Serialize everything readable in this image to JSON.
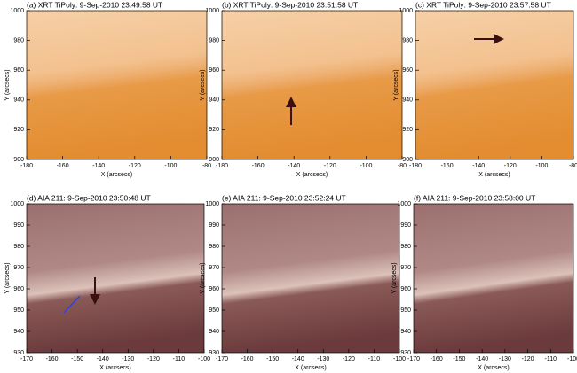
{
  "panels": [
    {
      "title": "(a) XRT TiPoly:  9-Sep-2010 23:49:58 UT",
      "xlabel": "X (arcsecs)",
      "ylabel": "Y (arcsecs)",
      "kind": "xrt",
      "xlim": [
        -180,
        -80
      ],
      "xticks": [
        -180,
        -160,
        -140,
        -120,
        -100,
        -80
      ],
      "ylim": [
        900,
        1000
      ],
      "yticks": [
        900,
        920,
        940,
        960,
        980,
        1000
      ]
    },
    {
      "title": "(b) XRT TiPoly:  9-Sep-2010 23:51:58 UT",
      "xlabel": "X (arcsecs)",
      "ylabel": "Y (arcsecs)",
      "kind": "xrt",
      "xlim": [
        -180,
        -80
      ],
      "xticks": [
        -180,
        -160,
        -140,
        -120,
        -100,
        -80
      ],
      "ylim": [
        900,
        1000
      ],
      "yticks": [
        900,
        920,
        940,
        960,
        980,
        1000
      ]
    },
    {
      "title": "(c) XRT TiPoly:  9-Sep-2010 23:57:58 UT",
      "xlabel": "X (arcsecs)",
      "ylabel": "Y (arcsecs)",
      "kind": "xrt",
      "xlim": [
        -180,
        -80
      ],
      "xticks": [
        -180,
        -160,
        -140,
        -120,
        -100,
        -80
      ],
      "ylim": [
        900,
        1000
      ],
      "yticks": [
        900,
        920,
        940,
        960,
        980,
        1000
      ]
    },
    {
      "title": "(d) AIA 211: 9-Sep-2010 23:50:48 UT",
      "xlabel": "X (arcsecs)",
      "ylabel": "Y (arcsecs)",
      "kind": "aia",
      "xlim": [
        -170,
        -100
      ],
      "xticks": [
        -170,
        -160,
        -150,
        -140,
        -130,
        -120,
        -110,
        -100
      ],
      "ylim": [
        930,
        1000
      ],
      "yticks": [
        930,
        940,
        950,
        960,
        970,
        980,
        990,
        1000
      ]
    },
    {
      "title": "(e) AIA 211:  9-Sep-2010 23:52:24 UT",
      "xlabel": "X (arcsecs)",
      "ylabel": "Y (arcsecs)",
      "kind": "aia",
      "xlim": [
        -170,
        -100
      ],
      "xticks": [
        -170,
        -160,
        -150,
        -140,
        -130,
        -120,
        -110,
        -100
      ],
      "ylim": [
        930,
        1000
      ],
      "yticks": [
        930,
        940,
        950,
        960,
        970,
        980,
        990,
        1000
      ]
    },
    {
      "title": "(f) AIA 211:  9-Sep-2010 23:58:00 UT",
      "xlabel": "X (arcsecs)",
      "ylabel": "Y (arcsecs)",
      "kind": "aia",
      "xlim": [
        -170,
        -100
      ],
      "xticks": [
        -170,
        -160,
        -150,
        -140,
        -130,
        -120,
        -110,
        -100
      ],
      "ylim": [
        930,
        1000
      ],
      "yticks": [
        930,
        940,
        950,
        960,
        970,
        980,
        990,
        1000
      ]
    }
  ]
}
